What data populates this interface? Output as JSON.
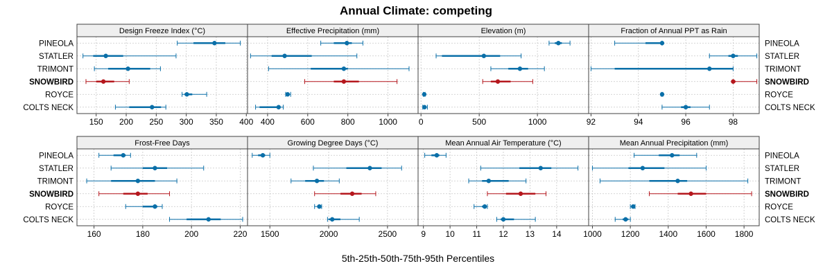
{
  "title": "Annual Climate: competing",
  "xlabel": "5th-25th-50th-75th-95th Percentiles",
  "sites": [
    "PINEOLA",
    "STATLER",
    "TRIMONT",
    "SNOWBIRD",
    "ROYCE",
    "COLTS NECK"
  ],
  "highlight_site": "SNOWBIRD",
  "colors": {
    "normal": "#0a6fa8",
    "highlight": "#b5171d",
    "strip": "#efefef",
    "grid": "#c8c8c8",
    "frame": "#404040"
  },
  "chart_data": [
    {
      "type": "dotplot",
      "title": "Design Freeze Index (°C)",
      "xlim": [
        118,
        402
      ],
      "ticks": [
        150,
        200,
        250,
        300,
        350,
        400
      ],
      "series": [
        {
          "site": "PINEOLA",
          "p5": 285,
          "p25": 312,
          "p50": 347,
          "p75": 365,
          "p95": 390
        },
        {
          "site": "STATLER",
          "p5": 128,
          "p25": 145,
          "p50": 166,
          "p75": 195,
          "p95": 283
        },
        {
          "site": "TRIMONT",
          "p5": 147,
          "p25": 170,
          "p50": 203,
          "p75": 240,
          "p95": 257
        },
        {
          "site": "SNOWBIRD",
          "p5": 133,
          "p25": 150,
          "p50": 162,
          "p75": 180,
          "p95": 205
        },
        {
          "site": "ROYCE",
          "p5": 293,
          "p25": 297,
          "p50": 301,
          "p75": 310,
          "p95": 334
        },
        {
          "site": "COLTS NECK",
          "p5": 182,
          "p25": 205,
          "p50": 243,
          "p75": 258,
          "p95": 266
        }
      ]
    },
    {
      "type": "dotplot",
      "title": "Effective Precipitation (mm)",
      "xlim": [
        300,
        1150
      ],
      "ticks": [
        400,
        600,
        800,
        1000
      ],
      "series": [
        {
          "site": "PINEOLA",
          "p5": 665,
          "p25": 730,
          "p50": 795,
          "p75": 820,
          "p95": 875
        },
        {
          "site": "STATLER",
          "p5": 315,
          "p25": 420,
          "p50": 485,
          "p75": 620,
          "p95": 845
        },
        {
          "site": "TRIMONT",
          "p5": 405,
          "p25": 615,
          "p50": 780,
          "p75": 800,
          "p95": 1105
        },
        {
          "site": "SNOWBIRD",
          "p5": 585,
          "p25": 730,
          "p50": 780,
          "p75": 855,
          "p95": 1045
        },
        {
          "site": "ROYCE",
          "p5": 490,
          "p25": 494,
          "p50": 500,
          "p75": 506,
          "p95": 515
        },
        {
          "site": "COLTS NECK",
          "p5": 340,
          "p25": 360,
          "p50": 455,
          "p75": 460,
          "p95": 478
        }
      ]
    },
    {
      "type": "dotplot",
      "title": "Elevation (m)",
      "xlim": [
        -25,
        1440
      ],
      "ticks": [
        0,
        500,
        1000
      ],
      "series": [
        {
          "site": "PINEOLA",
          "p5": 1100,
          "p25": 1150,
          "p50": 1180,
          "p75": 1210,
          "p95": 1280
        },
        {
          "site": "STATLER",
          "p5": 130,
          "p25": 180,
          "p50": 540,
          "p75": 680,
          "p95": 860
        },
        {
          "site": "TRIMONT",
          "p5": 600,
          "p25": 750,
          "p50": 850,
          "p75": 920,
          "p95": 1060
        },
        {
          "site": "SNOWBIRD",
          "p5": 530,
          "p25": 600,
          "p50": 660,
          "p75": 770,
          "p95": 960
        },
        {
          "site": "ROYCE",
          "p5": 20,
          "p25": 24,
          "p50": 28,
          "p75": 31,
          "p95": 35
        },
        {
          "site": "COLTS NECK",
          "p5": 15,
          "p25": 20,
          "p50": 30,
          "p75": 36,
          "p95": 55
        }
      ]
    },
    {
      "type": "dotplot",
      "title": "Fraction of Annual PPT as Rain",
      "xlim": [
        91.9,
        99.1
      ],
      "ticks": [
        92,
        94,
        96,
        98
      ],
      "series": [
        {
          "site": "PINEOLA",
          "p5": 93.0,
          "p25": 94.3,
          "p50": 95.0,
          "p75": 95.0,
          "p95": 95.0
        },
        {
          "site": "STATLER",
          "p5": 97.0,
          "p25": 97.8,
          "p50": 98.0,
          "p75": 98.2,
          "p95": 99.0
        },
        {
          "site": "TRIMONT",
          "p5": 92.0,
          "p25": 93.0,
          "p50": 97.0,
          "p75": 98.0,
          "p95": 98.0
        },
        {
          "site": "SNOWBIRD",
          "p5": 98.0,
          "p25": 98.0,
          "p50": 98.0,
          "p75": 98.1,
          "p95": 99.0
        },
        {
          "site": "ROYCE",
          "p5": 94.97,
          "p25": 94.99,
          "p50": 95.0,
          "p75": 95.01,
          "p95": 95.03
        },
        {
          "site": "COLTS NECK",
          "p5": 95.0,
          "p25": 95.8,
          "p50": 96.0,
          "p75": 96.2,
          "p95": 97.0
        }
      ]
    },
    {
      "type": "dotplot",
      "title": "Frost-Free Days",
      "xlim": [
        153,
        223
      ],
      "ticks": [
        160,
        180,
        200,
        220
      ],
      "series": [
        {
          "site": "PINEOLA",
          "p5": 162,
          "p25": 168,
          "p50": 172,
          "p75": 173,
          "p95": 175
        },
        {
          "site": "STATLER",
          "p5": 167,
          "p25": 180,
          "p50": 185,
          "p75": 190,
          "p95": 205
        },
        {
          "site": "TRIMONT",
          "p5": 157,
          "p25": 167,
          "p50": 178,
          "p75": 185,
          "p95": 194
        },
        {
          "site": "SNOWBIRD",
          "p5": 162,
          "p25": 172,
          "p50": 178,
          "p75": 182,
          "p95": 191
        },
        {
          "site": "ROYCE",
          "p5": 173,
          "p25": 180,
          "p50": 185,
          "p75": 186,
          "p95": 188
        },
        {
          "site": "COLTS NECK",
          "p5": 191,
          "p25": 198,
          "p50": 207,
          "p75": 212,
          "p95": 221
        }
      ]
    },
    {
      "type": "dotplot",
      "title": "Growing Degree Days (°C)",
      "xlim": [
        1310,
        2760
      ],
      "ticks": [
        1500,
        2000,
        2500
      ],
      "series": [
        {
          "site": "PINEOLA",
          "p5": 1350,
          "p25": 1400,
          "p50": 1440,
          "p75": 1460,
          "p95": 1500
        },
        {
          "site": "STATLER",
          "p5": 1870,
          "p25": 2150,
          "p50": 2350,
          "p75": 2450,
          "p95": 2620
        },
        {
          "site": "TRIMONT",
          "p5": 1680,
          "p25": 1800,
          "p50": 1900,
          "p75": 1960,
          "p95": 2090
        },
        {
          "site": "SNOWBIRD",
          "p5": 1880,
          "p25": 2100,
          "p50": 2200,
          "p75": 2280,
          "p95": 2400
        },
        {
          "site": "ROYCE",
          "p5": 1880,
          "p25": 1910,
          "p50": 1920,
          "p75": 1930,
          "p95": 1940
        },
        {
          "site": "COLTS NECK",
          "p5": 1990,
          "p25": 2000,
          "p50": 2030,
          "p75": 2100,
          "p95": 2260
        }
      ]
    },
    {
      "type": "dotplot",
      "title": "Mean Annual Air Temperature (°C)",
      "xlim": [
        8.8,
        15.2
      ],
      "ticks": [
        9,
        10,
        11,
        12,
        13,
        14
      ],
      "series": [
        {
          "site": "PINEOLA",
          "p5": 9.05,
          "p25": 9.3,
          "p50": 9.5,
          "p75": 9.6,
          "p95": 9.85
        },
        {
          "site": "STATLER",
          "p5": 11.15,
          "p25": 12.6,
          "p50": 13.4,
          "p75": 13.8,
          "p95": 14.8
        },
        {
          "site": "TRIMONT",
          "p5": 10.7,
          "p25": 11.2,
          "p50": 11.45,
          "p75": 12.2,
          "p95": 12.85
        },
        {
          "site": "SNOWBIRD",
          "p5": 11.4,
          "p25": 12.1,
          "p50": 12.65,
          "p75": 13.2,
          "p95": 13.6
        },
        {
          "site": "ROYCE",
          "p5": 10.9,
          "p25": 11.2,
          "p50": 11.3,
          "p75": 11.35,
          "p95": 11.4
        },
        {
          "site": "COLTS NECK",
          "p5": 11.75,
          "p25": 11.9,
          "p50": 12.0,
          "p75": 12.4,
          "p95": 13.2
        }
      ]
    },
    {
      "type": "dotplot",
      "title": "Mean Annual Precipitation (mm)",
      "xlim": [
        980,
        1880
      ],
      "ticks": [
        1000,
        1200,
        1400,
        1600,
        1800
      ],
      "series": [
        {
          "site": "PINEOLA",
          "p5": 1220,
          "p25": 1350,
          "p50": 1420,
          "p75": 1460,
          "p95": 1550
        },
        {
          "site": "STATLER",
          "p5": 1000,
          "p25": 1190,
          "p50": 1265,
          "p75": 1380,
          "p95": 1600
        },
        {
          "site": "TRIMONT",
          "p5": 1040,
          "p25": 1300,
          "p50": 1450,
          "p75": 1500,
          "p95": 1820
        },
        {
          "site": "SNOWBIRD",
          "p5": 1300,
          "p25": 1450,
          "p50": 1520,
          "p75": 1600,
          "p95": 1840
        },
        {
          "site": "ROYCE",
          "p5": 1200,
          "p25": 1208,
          "p50": 1215,
          "p75": 1220,
          "p95": 1225
        },
        {
          "site": "COLTS NECK",
          "p5": 1120,
          "p25": 1160,
          "p50": 1175,
          "p75": 1190,
          "p95": 1200
        }
      ]
    }
  ]
}
